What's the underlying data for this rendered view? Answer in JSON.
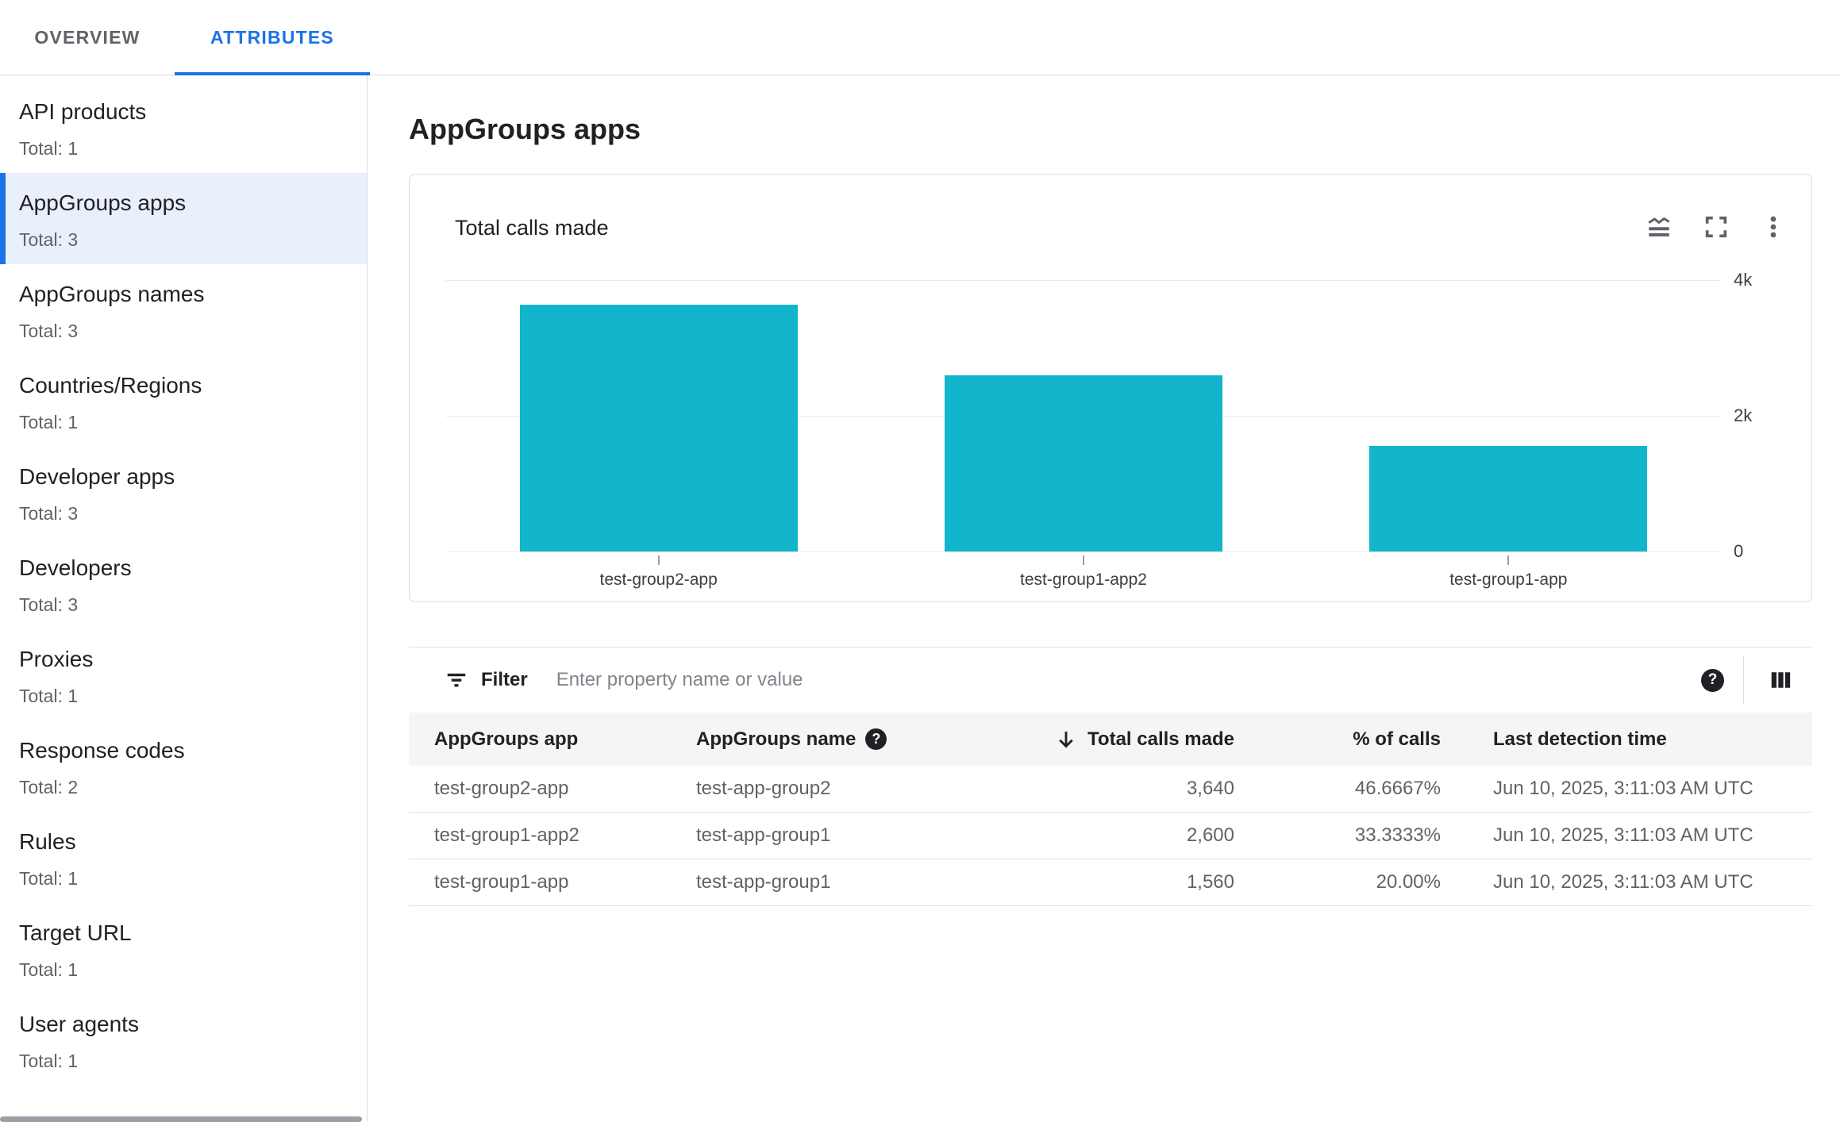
{
  "header": {
    "tabs": [
      {
        "label": "OVERVIEW",
        "selected": false
      },
      {
        "label": "ATTRIBUTES",
        "selected": true
      }
    ]
  },
  "sidebar": {
    "items": [
      {
        "label": "API products",
        "total": "Total: 1",
        "selected": false
      },
      {
        "label": "AppGroups apps",
        "total": "Total: 3",
        "selected": true
      },
      {
        "label": "AppGroups names",
        "total": "Total: 3",
        "selected": false
      },
      {
        "label": "Countries/Regions",
        "total": "Total: 1",
        "selected": false
      },
      {
        "label": "Developer apps",
        "total": "Total: 3",
        "selected": false
      },
      {
        "label": "Developers",
        "total": "Total: 3",
        "selected": false
      },
      {
        "label": "Proxies",
        "total": "Total: 1",
        "selected": false
      },
      {
        "label": "Response codes",
        "total": "Total: 2",
        "selected": false
      },
      {
        "label": "Rules",
        "total": "Total: 1",
        "selected": false
      },
      {
        "label": "Target URL",
        "total": "Total: 1",
        "selected": false
      },
      {
        "label": "User agents",
        "total": "Total: 1",
        "selected": false
      }
    ]
  },
  "main": {
    "page_title": "AppGroups apps",
    "card": {
      "title": "Total calls made"
    },
    "filter": {
      "label": "Filter",
      "placeholder": "Enter property name or value",
      "value": ""
    },
    "table": {
      "columns": [
        "AppGroups app",
        "AppGroups name",
        "Total calls made",
        "% of calls",
        "Last detection time"
      ],
      "sort": {
        "column": "Total calls made",
        "direction": "descending"
      },
      "rows": [
        {
          "app": "test-group2-app",
          "name": "test-app-group2",
          "calls": "3,640",
          "pct": "46.6667%",
          "last": "Jun 10, 2025, 3:11:03 AM UTC"
        },
        {
          "app": "test-group1-app2",
          "name": "test-app-group1",
          "calls": "2,600",
          "pct": "33.3333%",
          "last": "Jun 10, 2025, 3:11:03 AM UTC"
        },
        {
          "app": "test-group1-app",
          "name": "test-app-group1",
          "calls": "1,560",
          "pct": "20.00%",
          "last": "Jun 10, 2025, 3:11:03 AM UTC"
        }
      ]
    }
  },
  "chart_data": {
    "type": "bar",
    "title": "Total calls made",
    "categories": [
      "test-group2-app",
      "test-group1-app2",
      "test-group1-app"
    ],
    "values": [
      3640,
      2600,
      1560
    ],
    "xlabel": "",
    "ylabel": "",
    "ylim": [
      0,
      4000
    ],
    "yticks": [
      {
        "value": 0,
        "label": "0"
      },
      {
        "value": 2000,
        "label": "2k"
      },
      {
        "value": 4000,
        "label": "4k"
      }
    ],
    "bar_color": "#12b5cb",
    "grid": true,
    "legend": false
  },
  "colors": {
    "accent_blue": "#1a73e8",
    "bar_teal": "#12b5cb",
    "selected_bg": "#e9f0fc",
    "border": "#dadce0",
    "header_bg": "#f5f5f5"
  }
}
